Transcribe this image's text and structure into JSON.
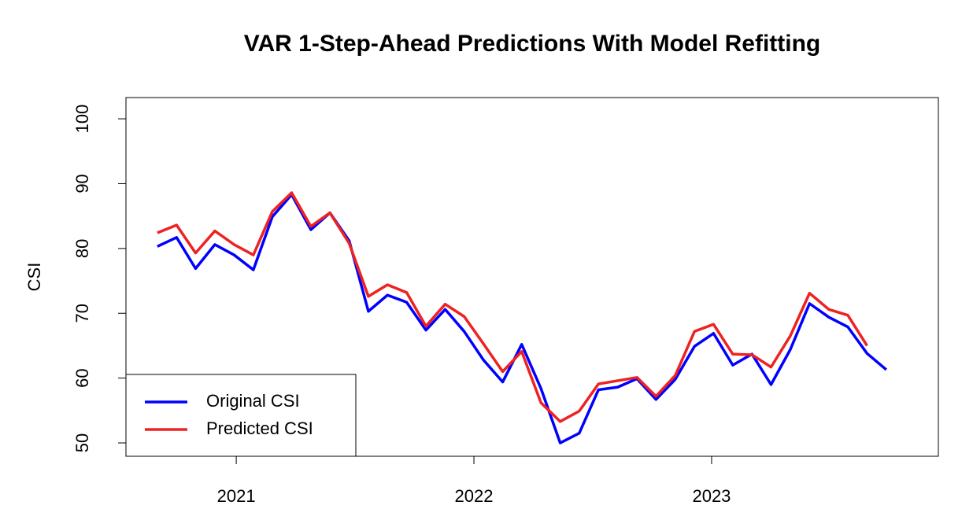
{
  "chart_data": {
    "type": "line",
    "title": "VAR 1-Step-Ahead Predictions With Model Refitting",
    "y_label": "CSI",
    "x": [
      2020.668,
      2020.749,
      2020.829,
      2020.91,
      2020.991,
      2021.072,
      2021.152,
      2021.233,
      2021.314,
      2021.394,
      2021.475,
      2021.556,
      2021.636,
      2021.717,
      2021.798,
      2021.879,
      2021.959,
      2022.04,
      2022.121,
      2022.201,
      2022.282,
      2022.363,
      2022.443,
      2022.524,
      2022.605,
      2022.686,
      2022.766,
      2022.847,
      2022.928,
      2023.008,
      2023.089,
      2023.17,
      2023.25,
      2023.331,
      2023.412,
      2023.493,
      2023.573,
      2023.654,
      2023.735
    ],
    "series": [
      {
        "name": "Original CSI",
        "color": "#0000ff",
        "values": [
          80.3,
          81.7,
          76.9,
          80.6,
          79.0,
          76.7,
          84.9,
          88.3,
          82.9,
          85.5,
          81.2,
          70.3,
          72.8,
          71.7,
          67.4,
          70.6,
          67.2,
          62.8,
          59.4,
          65.2,
          58.4,
          50.0,
          51.5,
          58.2,
          58.6,
          59.9,
          56.7,
          59.8,
          64.9,
          66.9,
          62.0,
          63.7,
          59.0,
          64.4,
          71.5,
          69.4,
          67.9,
          63.8,
          61.3
        ]
      },
      {
        "name": "Predicted CSI",
        "color": "#ee2222",
        "values": [
          82.4,
          83.6,
          79.3,
          82.7,
          80.6,
          79.0,
          85.7,
          88.6,
          83.4,
          85.5,
          80.8,
          72.6,
          74.4,
          73.2,
          68.0,
          71.4,
          69.5,
          65.3,
          61.0,
          64.1,
          56.2,
          53.3,
          54.9,
          59.1,
          59.6,
          60.1,
          57.2,
          60.4,
          67.2,
          68.3,
          63.7,
          63.6,
          61.7,
          66.5,
          73.1,
          70.6,
          69.7,
          65.0,
          null
        ]
      }
    ],
    "xlim": [
      2020.536,
      2023.954
    ],
    "xticks": [
      2021,
      2022,
      2023
    ],
    "ylim": [
      47.94,
      103.28
    ],
    "yticks": [
      50,
      60,
      70,
      80,
      90,
      100
    ],
    "legend": "bottom-left"
  }
}
